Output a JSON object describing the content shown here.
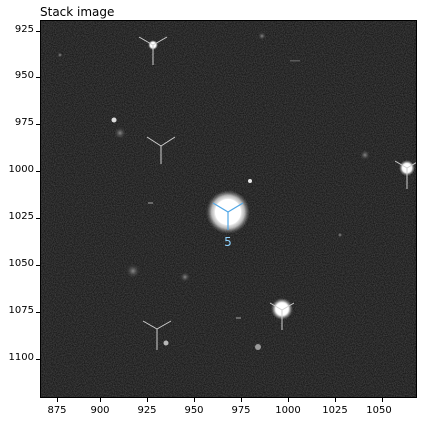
{
  "figure": {
    "title": "Stack image"
  },
  "axes": {
    "x_ticks": [
      "875",
      "900",
      "925",
      "950",
      "975",
      "1000",
      "1025",
      "1050"
    ],
    "y_ticks": [
      "925",
      "950",
      "975",
      "1000",
      "1025",
      "1050",
      "1075",
      "1100"
    ],
    "x_range": [
      866,
      1067
    ],
    "y_range": [
      917,
      1119
    ]
  },
  "sources": [
    {
      "label": "5",
      "label_color": "#8fd3ff"
    }
  ],
  "colors": {
    "background": "#0b0b0b",
    "star": "#ffffff",
    "marker_cyan": "#7ec8ff",
    "marker_gray": "#cfcfcf"
  }
}
